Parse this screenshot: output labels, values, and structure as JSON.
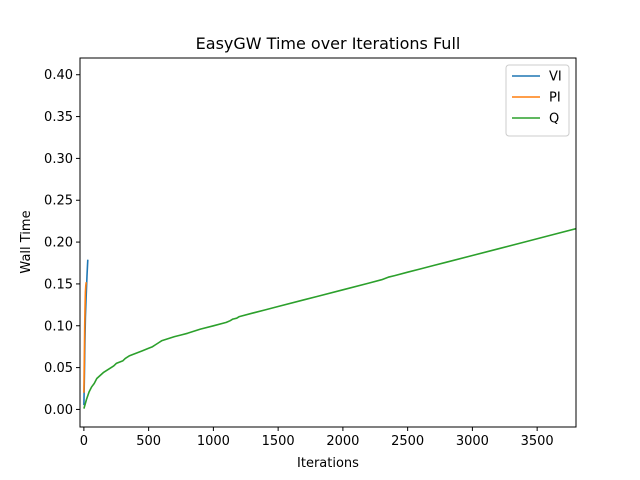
{
  "chart_data": {
    "type": "line",
    "title": "EasyGW Time over Iterations Full",
    "xlabel": "Iterations",
    "ylabel": "Wall Time",
    "xlim": [
      -30,
      3800
    ],
    "ylim": [
      -0.021,
      0.42
    ],
    "xticks": [
      0,
      500,
      1000,
      1500,
      2000,
      2500,
      3000,
      3500
    ],
    "yticks": [
      0.0,
      0.05,
      0.1,
      0.15,
      0.2,
      0.25,
      0.3,
      0.35,
      0.4
    ],
    "ytick_labels": [
      "0.00",
      "0.05",
      "0.10",
      "0.15",
      "0.20",
      "0.25",
      "0.30",
      "0.35",
      "0.40"
    ],
    "xtick_labels": [
      "0",
      "500",
      "1000",
      "1500",
      "2000",
      "2500",
      "3000",
      "3500"
    ],
    "grid": false,
    "legend_position": "top-right",
    "series": [
      {
        "name": "VI",
        "color": "#1f77b4",
        "x": [
          0,
          4,
          8,
          12,
          16,
          20,
          24,
          28,
          30
        ],
        "y": [
          0.005,
          0.04,
          0.08,
          0.11,
          0.13,
          0.145,
          0.16,
          0.172,
          0.179
        ]
      },
      {
        "name": "PI",
        "color": "#ff7f0e",
        "x": [
          0,
          3,
          6,
          9,
          12,
          15,
          18
        ],
        "y": [
          0.02,
          0.06,
          0.1,
          0.125,
          0.14,
          0.148,
          0.152
        ]
      },
      {
        "name": "Q",
        "color": "#2ca02c",
        "x": [
          0,
          20,
          40,
          60,
          80,
          100,
          150,
          200,
          230,
          250,
          300,
          320,
          350,
          400,
          450,
          500,
          530,
          550,
          580,
          600,
          700,
          750,
          800,
          900,
          1000,
          1100,
          1130,
          1150,
          1180,
          1200,
          1300,
          1400,
          1500,
          1700,
          1800,
          2000,
          2200,
          2300,
          2350,
          2400,
          2500,
          2600,
          2700,
          2800,
          3000,
          3200,
          3400,
          3600,
          3800
        ],
        "y": [
          0.001,
          0.012,
          0.021,
          0.027,
          0.031,
          0.037,
          0.044,
          0.049,
          0.052,
          0.055,
          0.058,
          0.061,
          0.064,
          0.067,
          0.07,
          0.073,
          0.075,
          0.077,
          0.08,
          0.082,
          0.087,
          0.089,
          0.091,
          0.096,
          0.1,
          0.104,
          0.106,
          0.108,
          0.109,
          0.111,
          0.115,
          0.119,
          0.123,
          0.131,
          0.135,
          0.143,
          0.151,
          0.155,
          0.158,
          0.16,
          0.164,
          0.168,
          0.172,
          0.176,
          0.184,
          0.192,
          0.2,
          0.208,
          0.216
        ]
      }
    ]
  }
}
